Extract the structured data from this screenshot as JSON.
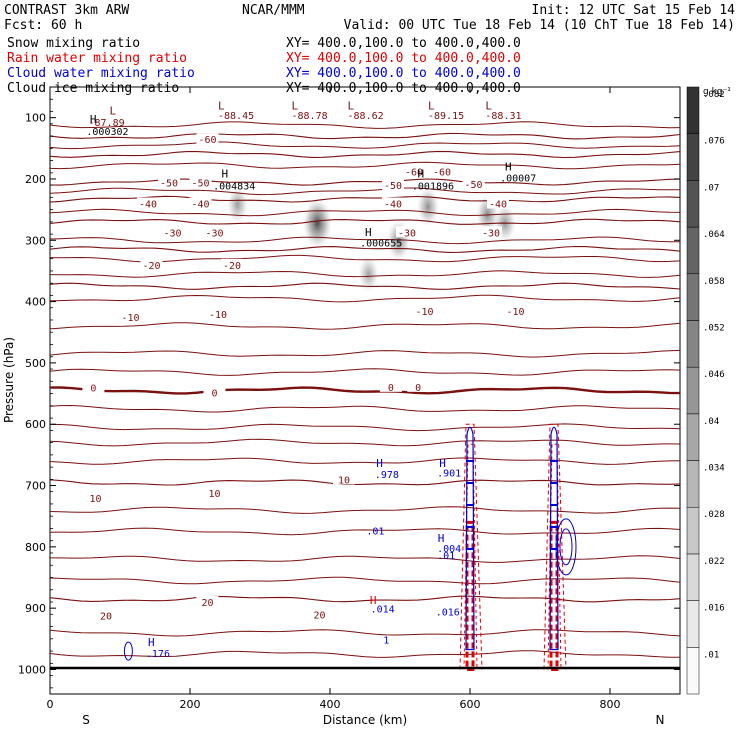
{
  "header": {
    "title_left": "CONTRAST  3km ARW",
    "title_center": "NCAR/MMM",
    "init": "Init: 12 UTC Sat 15 Feb 14",
    "fcst": "Fcst:   60 h",
    "valid": "Valid: 00 UTC Tue 18 Feb 14 (10 ChT Tue 18 Feb 14)"
  },
  "legend": [
    {
      "label": "Snow mixing ratio",
      "xy": "XY= 400.0,100.0 to 400.0,400.0",
      "color": "#000000"
    },
    {
      "label": "Rain water mixing ratio",
      "xy": "XY= 400.0,100.0 to 400.0,400.0",
      "color": "#e00000"
    },
    {
      "label": "Cloud water mixing ratio",
      "xy": "XY= 400.0,100.0 to 400.0,400.0",
      "color": "#0000d8"
    },
    {
      "label": "Cloud ice mixing ratio",
      "xy": "XY= 400.0,100.0 to 400.0,400.0",
      "color": "#000000"
    }
  ],
  "chart_data": {
    "type": "cross-section",
    "xlabel": "Distance (km)",
    "ylabel": "Pressure (hPa)",
    "x_ticks": [
      0,
      200,
      400,
      600,
      800
    ],
    "x_range": [
      0,
      900
    ],
    "y_ticks": [
      100,
      200,
      300,
      400,
      500,
      600,
      700,
      800,
      900,
      1000
    ],
    "y_range": [
      50,
      1040
    ],
    "left_end": "S",
    "right_end": "N",
    "colorbar": {
      "unit": "g kg⁻¹",
      "levels": [
        ".01",
        ".016",
        ".022",
        ".028",
        ".034",
        ".04",
        ".046",
        ".052",
        ".058",
        ".064",
        ".07",
        ".076",
        ".082"
      ]
    },
    "temperature_contours": [
      {
        "value": -60,
        "pressure": 130
      },
      {
        "value": -60,
        "pressure": 160
      },
      {
        "value": -50,
        "pressure": 205
      },
      {
        "value": -40,
        "pressure": 233
      },
      {
        "value": -30,
        "pressure": 270
      },
      {
        "value": -20,
        "pressure": 315
      },
      {
        "value": -10,
        "pressure": 375
      },
      {
        "value": 0,
        "pressure": 545
      },
      {
        "value": 10,
        "pressure": 695
      },
      {
        "value": 20,
        "pressure": 885
      }
    ],
    "temperature_labels": [
      {
        "text": "-60",
        "x": 225,
        "p": 135
      },
      {
        "text": "-60",
        "x": 520,
        "p": 188
      },
      {
        "text": "-60",
        "x": 560,
        "p": 188
      },
      {
        "text": "-50",
        "x": 170,
        "p": 206
      },
      {
        "text": "-50",
        "x": 215,
        "p": 206
      },
      {
        "text": "-50",
        "x": 490,
        "p": 210
      },
      {
        "text": "-50",
        "x": 605,
        "p": 208
      },
      {
        "text": "-40",
        "x": 140,
        "p": 240
      },
      {
        "text": "-40",
        "x": 215,
        "p": 240
      },
      {
        "text": "-40",
        "x": 490,
        "p": 240
      },
      {
        "text": "-40",
        "x": 640,
        "p": 240
      },
      {
        "text": "-30",
        "x": 175,
        "p": 287
      },
      {
        "text": "-30",
        "x": 235,
        "p": 287
      },
      {
        "text": "-30",
        "x": 510,
        "p": 287
      },
      {
        "text": "-30",
        "x": 630,
        "p": 287
      },
      {
        "text": "-20",
        "x": 145,
        "p": 340
      },
      {
        "text": "-20",
        "x": 260,
        "p": 340
      },
      {
        "text": "-10",
        "x": 115,
        "p": 425
      },
      {
        "text": "-10",
        "x": 240,
        "p": 420
      },
      {
        "text": "-10",
        "x": 535,
        "p": 415
      },
      {
        "text": "-10",
        "x": 665,
        "p": 415
      },
      {
        "text": "0",
        "x": 62,
        "p": 540
      },
      {
        "text": "0",
        "x": 235,
        "p": 548
      },
      {
        "text": "0",
        "x": 487,
        "p": 539
      },
      {
        "text": "0",
        "x": 526,
        "p": 539
      },
      {
        "text": "10",
        "x": 65,
        "p": 720
      },
      {
        "text": "10",
        "x": 235,
        "p": 712
      },
      {
        "text": "10",
        "x": 420,
        "p": 690
      },
      {
        "text": "20",
        "x": 80,
        "p": 912
      },
      {
        "text": "20",
        "x": 225,
        "p": 890
      },
      {
        "text": "20",
        "x": 385,
        "p": 910
      }
    ],
    "extrema_labels": [
      {
        "text": "L",
        "x": 85,
        "p": 95
      },
      {
        "text": "-87.89",
        "x": 55,
        "p": 114
      },
      {
        "text": "L",
        "x": 240,
        "p": 87
      },
      {
        "text": "-88.45",
        "x": 240,
        "p": 102
      },
      {
        "text": "L",
        "x": 345,
        "p": 87
      },
      {
        "text": "-88.78",
        "x": 345,
        "p": 102
      },
      {
        "text": "L",
        "x": 425,
        "p": 87
      },
      {
        "text": "-88.62",
        "x": 425,
        "p": 102
      },
      {
        "text": "L",
        "x": 540,
        "p": 87
      },
      {
        "text": "-89.15",
        "x": 540,
        "p": 102
      },
      {
        "text": "L",
        "x": 622,
        "p": 87
      },
      {
        "text": "-88.31",
        "x": 622,
        "p": 102
      },
      {
        "text": "H",
        "x": 57,
        "p": 109
      },
      {
        "text": ".000302",
        "x": 52,
        "p": 128
      },
      {
        "text": "H",
        "x": 245,
        "p": 198
      },
      {
        "text": ".004834",
        "x": 233,
        "p": 217
      },
      {
        "text": "H",
        "x": 525,
        "p": 198
      },
      {
        "text": ".001896",
        "x": 517,
        "p": 217
      },
      {
        "text": "H",
        "x": 650,
        "p": 186
      },
      {
        "text": ".00007",
        "x": 643,
        "p": 204
      },
      {
        "text": "H",
        "x": 450,
        "p": 293
      },
      {
        "text": ".000655",
        "x": 443,
        "p": 310
      },
      {
        "text": "H",
        "x": 140,
        "p": 962
      },
      {
        "text": ".176",
        "x": 137,
        "p": 980
      },
      {
        "text": "H",
        "x": 466,
        "p": 670
      },
      {
        "text": ".978",
        "x": 464,
        "p": 688
      },
      {
        "text": "H",
        "x": 556,
        "p": 670
      },
      {
        "text": ".901",
        "x": 553,
        "p": 685
      },
      {
        "text": ".01",
        "x": 452,
        "p": 780
      },
      {
        "text": ".01",
        "x": 553,
        "p": 820
      },
      {
        "text": "H",
        "x": 457,
        "p": 893
      },
      {
        "text": ".014",
        "x": 458,
        "p": 907
      },
      {
        "text": ".016",
        "x": 551,
        "p": 912
      },
      {
        "text": "1",
        "x": 476,
        "p": 958
      },
      {
        "text": "H",
        "x": 554,
        "p": 792
      },
      {
        "text": ".004",
        "x": 553,
        "p": 808
      }
    ],
    "snow_cores": [
      {
        "x": 268,
        "p": 242,
        "intensity": 0.25
      },
      {
        "x": 382,
        "p": 272,
        "intensity": 0.9
      },
      {
        "x": 455,
        "p": 355,
        "intensity": 0.2
      },
      {
        "x": 498,
        "p": 300,
        "intensity": 0.45
      },
      {
        "x": 540,
        "p": 245,
        "intensity": 0.35
      },
      {
        "x": 625,
        "p": 258,
        "intensity": 0.4
      },
      {
        "x": 650,
        "p": 272,
        "intensity": 0.3
      }
    ],
    "convective_columns": [
      {
        "x": 600,
        "p_top": 600,
        "p_bottom": 1000
      },
      {
        "x": 720,
        "p_top": 600,
        "p_bottom": 1000
      }
    ]
  }
}
